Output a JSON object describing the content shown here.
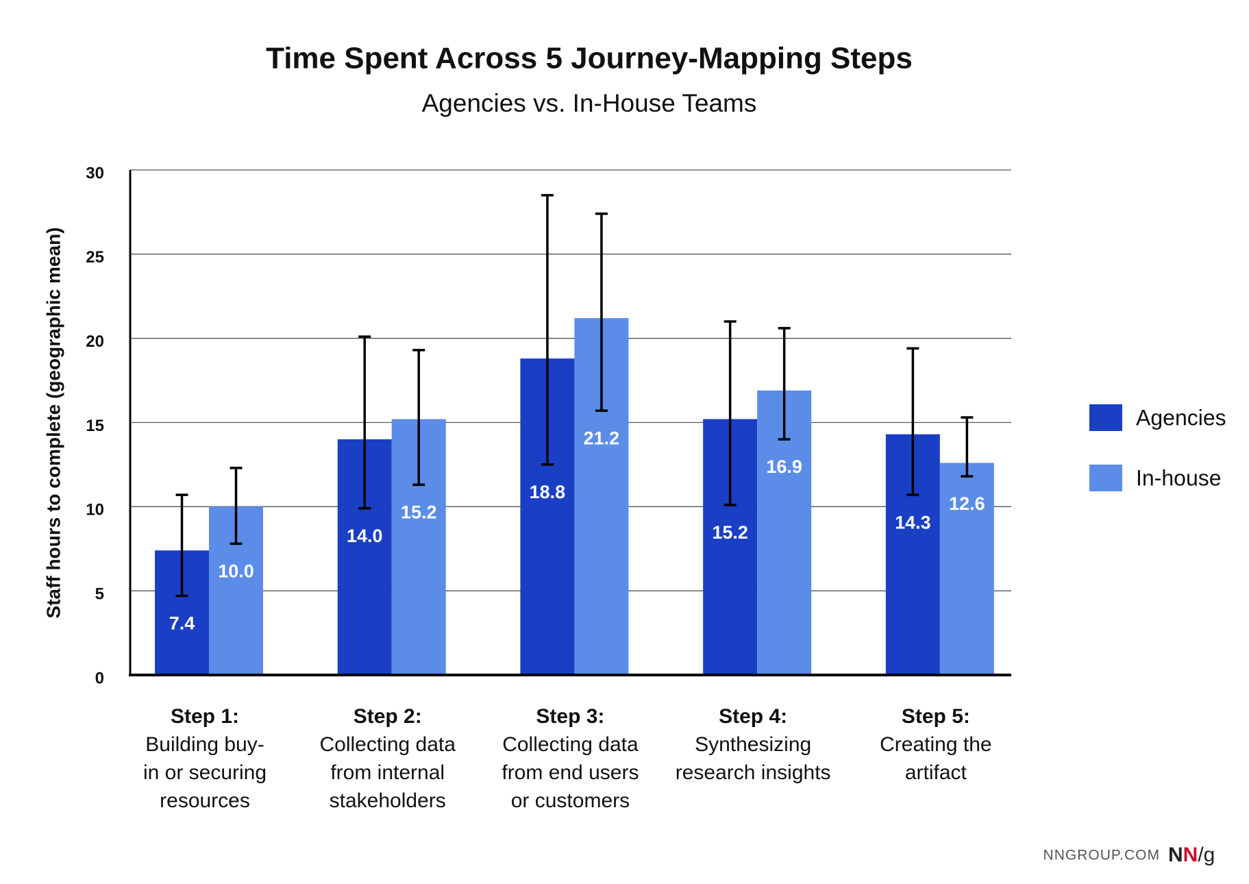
{
  "chart_data": {
    "type": "bar",
    "title": "Time Spent Across 5 Journey-Mapping Steps",
    "subtitle": "Agencies vs. In-House Teams",
    "y_label": "Staff hours to complete (geographic mean)",
    "categories": [
      [
        "Step 1:",
        "Building buy-",
        "in or securing",
        "resources"
      ],
      [
        "Step 2:",
        "Collecting data",
        "from internal",
        "stakeholders"
      ],
      [
        "Step 3:",
        "Collecting data",
        "from end users",
        "or customers"
      ],
      [
        "Step 4:",
        "Synthesizing",
        "research insights"
      ],
      [
        "Step 5:",
        "Creating the",
        "artifact"
      ]
    ],
    "series": [
      {
        "name": "Agencies",
        "color": "#1a3fc4",
        "values": [
          7.4,
          14.0,
          18.8,
          15.2,
          14.3
        ],
        "value_labels": [
          "7.4",
          "14.0",
          "18.8",
          "15.2",
          "14.3"
        ],
        "error_low": [
          4.7,
          9.9,
          12.5,
          10.1,
          10.7
        ],
        "error_high": [
          10.7,
          20.1,
          28.5,
          21.0,
          19.4
        ]
      },
      {
        "name": "In-house",
        "color": "#5b8de8",
        "values": [
          10.0,
          15.2,
          21.2,
          16.9,
          12.6
        ],
        "value_labels": [
          "10.0",
          "15.2",
          "21.2",
          "16.9",
          "12.6"
        ],
        "error_low": [
          7.8,
          11.3,
          15.7,
          14.0,
          11.8
        ],
        "error_high": [
          12.3,
          19.3,
          27.4,
          20.6,
          15.3
        ]
      }
    ],
    "ylim": [
      0,
      30
    ],
    "yticks": [
      0,
      5,
      10,
      15,
      20,
      25,
      30
    ],
    "grid": true,
    "legend": "right",
    "source": "NNGROUP.COM",
    "logo": [
      "N",
      "N",
      "/g"
    ]
  }
}
